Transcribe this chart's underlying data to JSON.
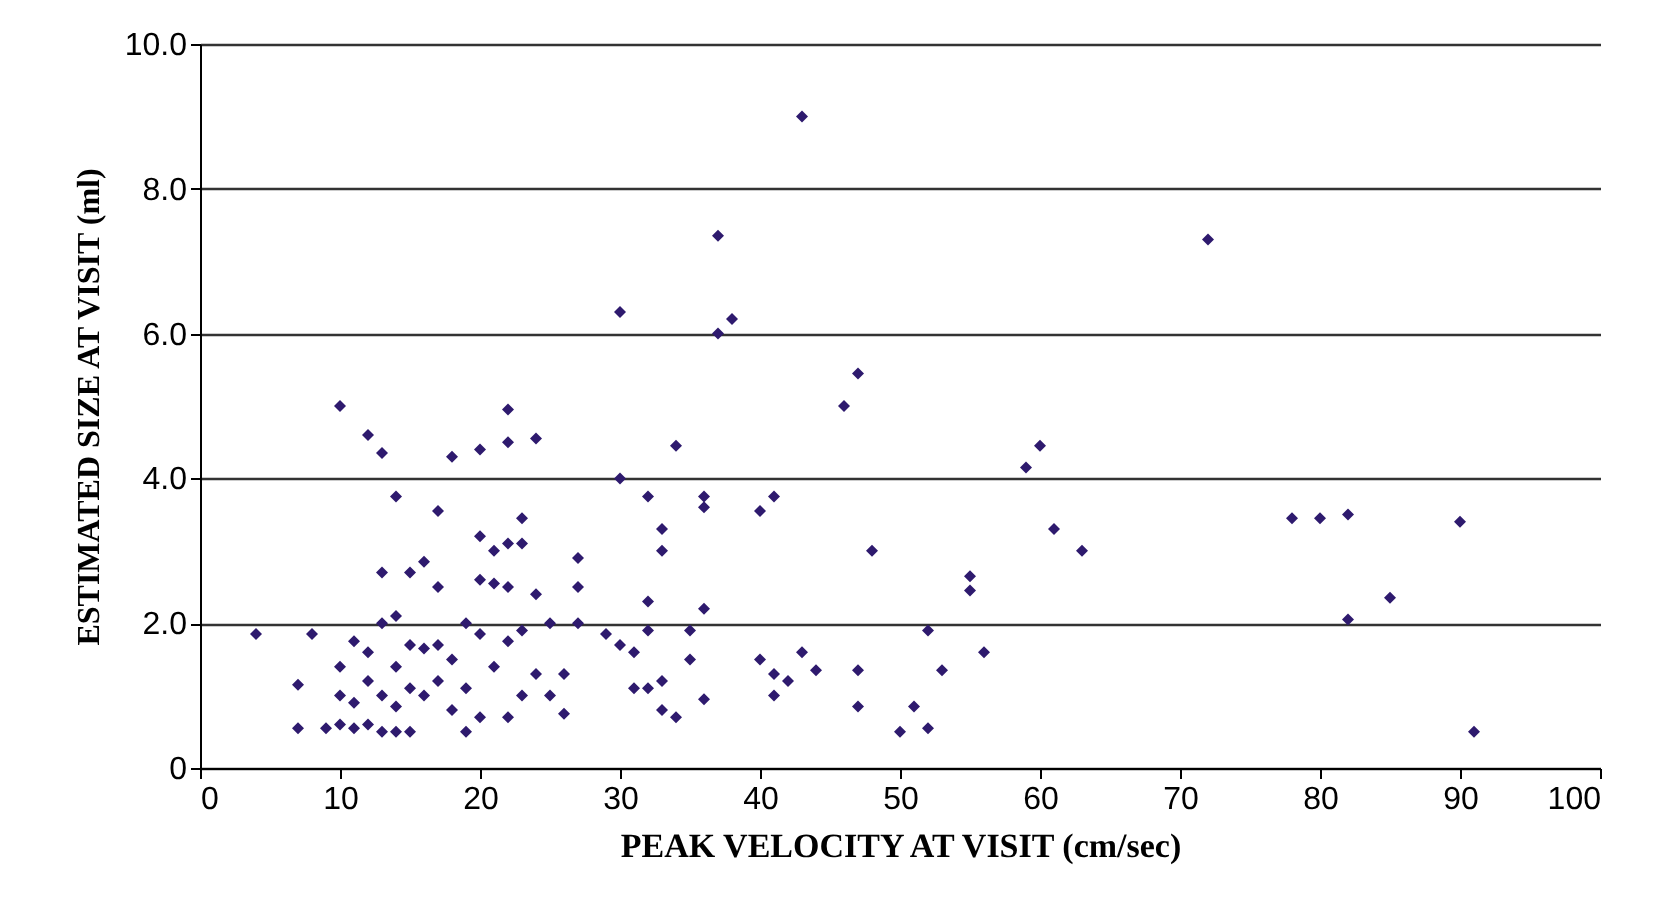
{
  "chart_data": {
    "type": "scatter",
    "xlabel": "PEAK VELOCITY AT VISIT (cm/sec)",
    "ylabel": "ESTIMATED SIZE AT VISIT (ml)",
    "x": [
      4,
      7,
      7,
      8,
      9,
      10,
      10,
      10,
      10,
      11,
      11,
      11,
      12,
      12,
      12,
      12,
      13,
      13,
      13,
      13,
      13,
      14,
      14,
      14,
      14,
      14,
      15,
      15,
      15,
      15,
      16,
      16,
      16,
      17,
      17,
      17,
      17,
      18,
      18,
      18,
      19,
      19,
      19,
      20,
      20,
      20,
      20,
      20,
      21,
      21,
      21,
      22,
      22,
      22,
      22,
      22,
      22,
      23,
      23,
      23,
      23,
      24,
      24,
      24,
      25,
      25,
      26,
      26,
      27,
      27,
      27,
      29,
      30,
      30,
      30,
      31,
      31,
      32,
      32,
      32,
      32,
      33,
      33,
      33,
      33,
      34,
      34,
      35,
      35,
      36,
      36,
      36,
      36,
      37,
      37,
      38,
      40,
      40,
      41,
      41,
      41,
      42,
      43,
      43,
      44,
      46,
      47,
      47,
      47,
      48,
      50,
      51,
      52,
      52,
      53,
      55,
      55,
      56,
      59,
      60,
      61,
      63,
      72,
      78,
      80,
      82,
      82,
      85,
      90,
      91
    ],
    "series": [
      {
        "color": "#2e1a6e",
        "values": [
          1.85,
          0.55,
          1.15,
          1.85,
          0.55,
          5.0,
          0.6,
          1.0,
          1.4,
          1.75,
          0.55,
          0.9,
          4.6,
          1.2,
          0.6,
          1.6,
          4.35,
          2.7,
          2.0,
          0.5,
          1.0,
          3.75,
          2.1,
          1.4,
          0.5,
          0.85,
          2.7,
          1.7,
          1.1,
          0.5,
          2.85,
          1.65,
          1.0,
          3.55,
          2.5,
          1.7,
          1.2,
          4.3,
          1.5,
          0.8,
          2.0,
          0.5,
          1.1,
          4.4,
          3.2,
          2.6,
          1.85,
          0.7,
          3.0,
          2.55,
          1.4,
          4.95,
          4.5,
          3.1,
          2.5,
          1.75,
          0.7,
          3.45,
          3.1,
          1.9,
          1.0,
          4.55,
          2.4,
          1.3,
          1.0,
          2.0,
          1.3,
          0.75,
          2.9,
          2.5,
          2.0,
          1.85,
          6.3,
          4.0,
          1.7,
          1.1,
          1.6,
          3.75,
          2.3,
          1.9,
          1.1,
          3.3,
          3.0,
          1.2,
          0.8,
          4.45,
          0.7,
          1.9,
          1.5,
          3.75,
          3.6,
          2.2,
          0.95,
          7.35,
          6.0,
          6.2,
          3.55,
          1.5,
          3.75,
          1.3,
          1.0,
          1.2,
          9.0,
          1.6,
          1.35,
          5.0,
          5.45,
          1.35,
          0.85,
          3.0,
          0.5,
          0.85,
          0.55,
          1.9,
          1.35,
          2.65,
          2.45,
          1.6,
          4.15,
          4.45,
          3.3,
          3.0,
          7.3,
          3.45,
          3.45,
          3.5,
          2.05,
          2.35,
          3.4,
          0.5
        ]
      }
    ],
    "xlim": [
      0,
      100
    ],
    "xticks": [
      0,
      10,
      20,
      30,
      40,
      50,
      60,
      70,
      80,
      90,
      100
    ],
    "ylim": [
      0,
      10
    ],
    "yticks": [
      0,
      {
        "value": 2,
        "label": "2.0"
      },
      {
        "value": 4,
        "label": "4.0"
      },
      {
        "value": 6,
        "label": "6.0"
      },
      {
        "value": 8,
        "label": "8.0"
      },
      {
        "value": 10,
        "label": "10.0"
      }
    ],
    "grid": "y",
    "marker": "diamond"
  }
}
